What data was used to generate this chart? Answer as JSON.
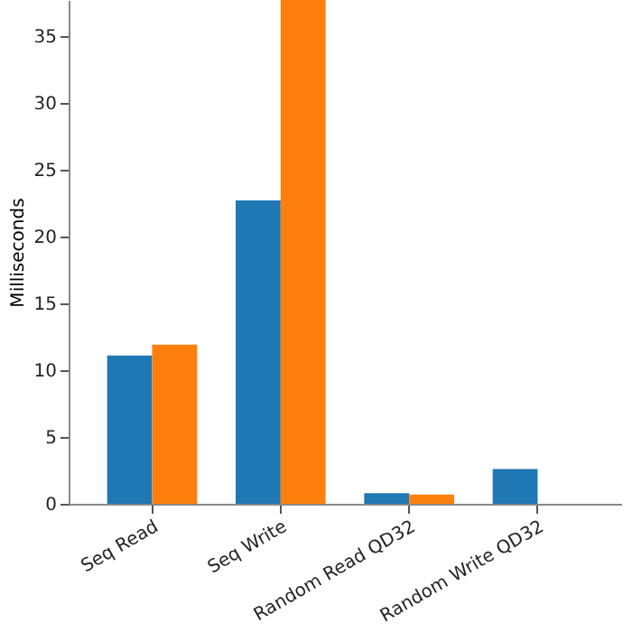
{
  "chart_data": {
    "type": "bar",
    "ylabel": "Milliseconds",
    "categories": [
      "Seq Read",
      "Seq Write",
      "Random Read\nQD32",
      "Random Write\nQD32"
    ],
    "series": [
      {
        "color": "#1f77b4",
        "values": [
          11.1,
          22.7,
          0.8,
          2.6
        ]
      },
      {
        "color": "#ff7f0e",
        "values": [
          11.9,
          37.7,
          0.7,
          null
        ]
      }
    ],
    "ylim": [
      0,
      37.7
    ],
    "yticks": [
      0,
      5,
      10,
      15,
      20,
      25,
      30,
      35
    ],
    "grid": false,
    "legend": false
  }
}
